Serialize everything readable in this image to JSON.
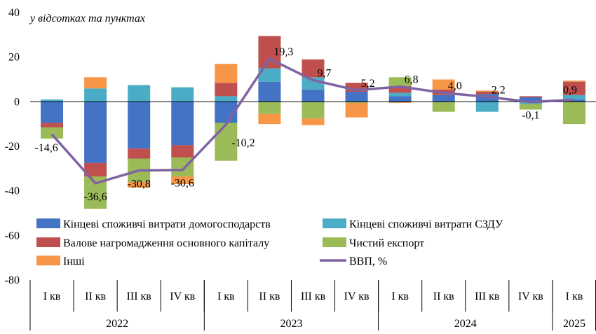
{
  "chart_data": {
    "type": "bar",
    "subtitle": "у відсотках та пунктах",
    "ylim": [
      -80,
      40
    ],
    "yticks": [
      -80,
      -60,
      -40,
      -20,
      0,
      20,
      40
    ],
    "grid": false,
    "legend_position": "bottom-inside",
    "categories": [
      {
        "quarter": "I кв",
        "year": "2022"
      },
      {
        "quarter": "II кв",
        "year": "2022"
      },
      {
        "quarter": "III кв",
        "year": "2022"
      },
      {
        "quarter": "IV кв",
        "year": "2022"
      },
      {
        "quarter": "I кв",
        "year": "2023"
      },
      {
        "quarter": "II кв",
        "year": "2023"
      },
      {
        "quarter": "III кв",
        "year": "2023"
      },
      {
        "quarter": "IV кв",
        "year": "2023"
      },
      {
        "quarter": "I кв",
        "year": "2024"
      },
      {
        "quarter": "II кв",
        "year": "2024"
      },
      {
        "quarter": "III кв",
        "year": "2024"
      },
      {
        "quarter": "IV кв",
        "year": "2024"
      },
      {
        "quarter": "I кв",
        "year": "2025"
      }
    ],
    "years": [
      {
        "label": "2022",
        "span": 4
      },
      {
        "label": "2023",
        "span": 4
      },
      {
        "label": "2024",
        "span": 4
      },
      {
        "label": "2025",
        "span": 1
      }
    ],
    "series": [
      {
        "name": "Кінцеві споживчі витрати домогосподарств",
        "kind": "bar",
        "color": "#4472C4",
        "values": [
          -9.5,
          -27.5,
          -21.0,
          -19.5,
          -9.5,
          9.0,
          5.5,
          4.5,
          2.5,
          3.0,
          3.5,
          2.0,
          1.0
        ]
      },
      {
        "name": "Кінцеві споживчі витрати СЗДУ",
        "kind": "bar",
        "color": "#4BACC6",
        "values": [
          1.0,
          6.0,
          7.5,
          6.5,
          2.5,
          6.0,
          5.5,
          0.0,
          1.5,
          0.0,
          -4.5,
          -1.0,
          2.0
        ]
      },
      {
        "name": "Валове нагромадження основного капіталу",
        "kind": "bar",
        "color": "#C0504D",
        "values": [
          -2.0,
          -6.0,
          -4.5,
          -5.5,
          6.0,
          14.5,
          8.0,
          4.0,
          3.0,
          2.5,
          1.0,
          0.5,
          6.0
        ]
      },
      {
        "name": "Чистий експорт",
        "kind": "bar",
        "color": "#9BBB59",
        "values": [
          -5.0,
          -14.5,
          -10.5,
          -8.5,
          -17.0,
          -5.5,
          -7.5,
          -0.5,
          4.0,
          -4.5,
          0.0,
          -2.5,
          -10.0
        ]
      },
      {
        "name": "Інші",
        "kind": "bar",
        "color": "#F79646",
        "values": [
          0.0,
          5.0,
          -2.5,
          -3.5,
          8.5,
          -4.5,
          -3.0,
          -6.5,
          -0.5,
          4.5,
          0.5,
          0.0,
          0.5
        ]
      },
      {
        "name": "ВВП, %",
        "kind": "line",
        "color": "#8064A2",
        "values": [
          -14.6,
          -36.6,
          -30.8,
          -30.6,
          -10.2,
          19.3,
          9.7,
          5.2,
          6.8,
          4.0,
          2.2,
          -0.1,
          0.9
        ]
      }
    ],
    "gdp_labels": [
      "-14,6",
      "-36,6",
      "-30,8",
      "-30,6",
      "-10,2",
      "19,3",
      "9,7",
      "5,2",
      "6,8",
      "4,0",
      "2,2",
      "-0,1",
      "0,9"
    ],
    "gdp_label_pos": [
      "below",
      "below",
      "below",
      "below",
      "right",
      "right",
      "right",
      "right",
      "right",
      "right",
      "right",
      "below",
      "above"
    ],
    "legend": [
      {
        "series": 0,
        "marker": "box"
      },
      {
        "series": 1,
        "marker": "box"
      },
      {
        "series": 2,
        "marker": "box"
      },
      {
        "series": 3,
        "marker": "box"
      },
      {
        "series": 4,
        "marker": "box"
      },
      {
        "series": 5,
        "marker": "line"
      }
    ]
  }
}
